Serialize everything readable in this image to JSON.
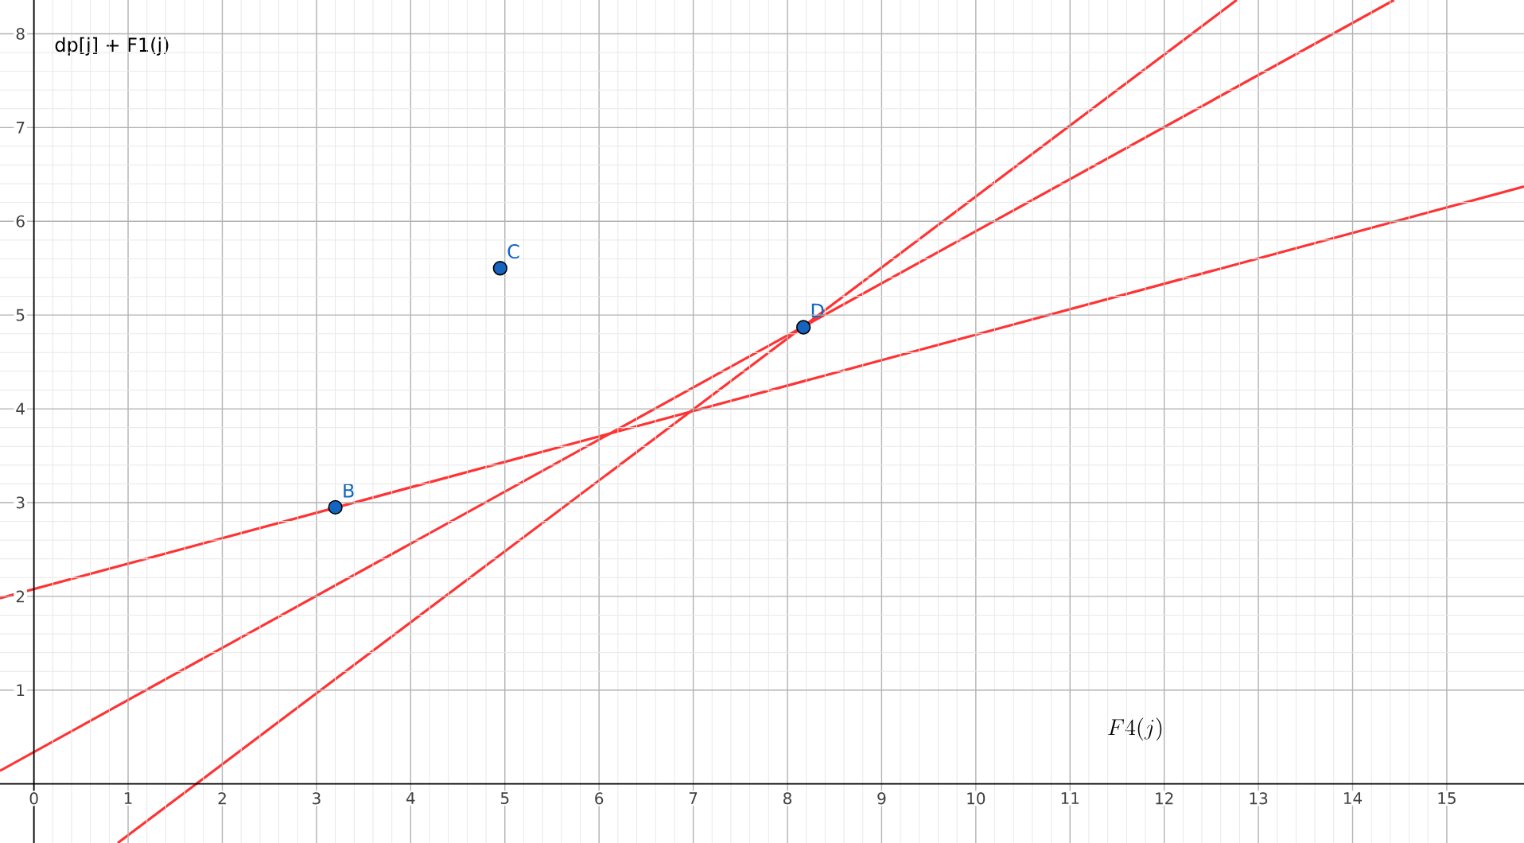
{
  "chart_data": {
    "type": "line",
    "xlabel": "F4(j)",
    "ylabel": "dp[j] + F1(j)",
    "xlim": [
      -0.36,
      15.82
    ],
    "ylim": [
      -0.63,
      8.36
    ],
    "xticks": [
      0,
      1,
      2,
      3,
      4,
      5,
      6,
      7,
      8,
      9,
      10,
      11,
      12,
      13,
      14,
      15
    ],
    "yticks": [
      1,
      2,
      3,
      4,
      5,
      6,
      7,
      8
    ],
    "grid": true,
    "series": [
      {
        "color": "#ff3333",
        "marker": "none",
        "x": [
          -0.36,
          15.82
        ],
        "values": [
          1.98,
          6.37
        ]
      },
      {
        "color": "#ff3333",
        "marker": "none",
        "x": [
          -0.36,
          14.44
        ],
        "values": [
          0.14,
          8.36
        ]
      },
      {
        "color": "#ff3333",
        "marker": "none",
        "x": [
          0.89,
          12.77
        ],
        "values": [
          -0.63,
          8.36
        ]
      },
      {
        "type": "scatter",
        "color": "#1565c0",
        "marker": "circle",
        "x": [
          3.2,
          4.95,
          8.17
        ],
        "values": [
          2.95,
          5.5,
          4.87
        ]
      }
    ],
    "annotations": [
      {
        "text": "B",
        "x": 3.2,
        "y": 2.95
      },
      {
        "text": "C",
        "x": 4.95,
        "y": 5.5
      },
      {
        "text": "D",
        "x": 8.17,
        "y": 4.87
      }
    ]
  }
}
